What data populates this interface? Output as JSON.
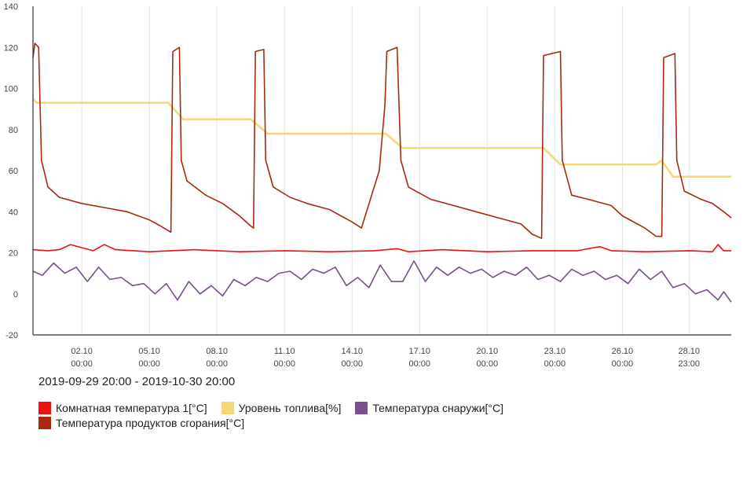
{
  "chart_data": {
    "type": "line",
    "title": "",
    "xlabel": "",
    "ylabel": "",
    "ylim": [
      -20,
      140
    ],
    "yticks": [
      -20,
      0,
      20,
      40,
      60,
      80,
      100,
      120,
      140
    ],
    "x_start": "2019-09-29 20:00",
    "x_end": "2019-10-30 20:00",
    "x_tick_labels": [
      {
        "day": "02.10",
        "time": "00:00",
        "at": "2019-10-02 00:00"
      },
      {
        "day": "05.10",
        "time": "00:00",
        "at": "2019-10-05 00:00"
      },
      {
        "day": "08.10",
        "time": "00:00",
        "at": "2019-10-08 00:00"
      },
      {
        "day": "11.10",
        "time": "00:00",
        "at": "2019-10-11 00:00"
      },
      {
        "day": "14.10",
        "time": "00:00",
        "at": "2019-10-14 00:00"
      },
      {
        "day": "17.10",
        "time": "00:00",
        "at": "2019-10-17 00:00"
      },
      {
        "day": "20.10",
        "time": "00:00",
        "at": "2019-10-20 00:00"
      },
      {
        "day": "23.10",
        "time": "00:00",
        "at": "2019-10-23 00:00"
      },
      {
        "day": "26.10",
        "time": "00:00",
        "at": "2019-10-26 00:00"
      },
      {
        "day": "28.10",
        "time": "23:00",
        "at": "2019-10-28 23:00"
      }
    ],
    "grid": "vertical",
    "legend_position": "bottom",
    "series": [
      {
        "name": "Комнатная температура 1[°C]",
        "color": "#ee1111",
        "points": [
          [
            "2019-09-29 20:00",
            21.5
          ],
          [
            "2019-09-30 12:00",
            21
          ],
          [
            "2019-10-01 00:00",
            21.5
          ],
          [
            "2019-10-01 12:00",
            24
          ],
          [
            "2019-10-02 00:00",
            22.5
          ],
          [
            "2019-10-02 12:00",
            21
          ],
          [
            "2019-10-03 00:00",
            24
          ],
          [
            "2019-10-03 12:00",
            21.5
          ],
          [
            "2019-10-05 00:00",
            20.5
          ],
          [
            "2019-10-07 00:00",
            21.5
          ],
          [
            "2019-10-09 00:00",
            20.5
          ],
          [
            "2019-10-11 00:00",
            21
          ],
          [
            "2019-10-13 00:00",
            20.5
          ],
          [
            "2019-10-15 00:00",
            21
          ],
          [
            "2019-10-16 00:00",
            22
          ],
          [
            "2019-10-16 12:00",
            20.5
          ],
          [
            "2019-10-18 00:00",
            21.5
          ],
          [
            "2019-10-20 00:00",
            20.5
          ],
          [
            "2019-10-22 00:00",
            21
          ],
          [
            "2019-10-24 00:00",
            21
          ],
          [
            "2019-10-25 00:00",
            23
          ],
          [
            "2019-10-25 12:00",
            21
          ],
          [
            "2019-10-27 00:00",
            20.5
          ],
          [
            "2019-10-29 00:00",
            21
          ],
          [
            "2019-10-30 00:00",
            20.5
          ],
          [
            "2019-10-30 06:00",
            24
          ],
          [
            "2019-10-30 12:00",
            21
          ],
          [
            "2019-10-30 20:00",
            21
          ]
        ]
      },
      {
        "name": "Уровень топлива[%]",
        "color": "#f7d67a",
        "points": [
          [
            "2019-09-29 20:00",
            95
          ],
          [
            "2019-09-30 00:00",
            93
          ],
          [
            "2019-10-05 20:00",
            93
          ],
          [
            "2019-10-06 12:00",
            85
          ],
          [
            "2019-10-09 12:00",
            85
          ],
          [
            "2019-10-10 06:00",
            78
          ],
          [
            "2019-10-15 12:00",
            78
          ],
          [
            "2019-10-16 06:00",
            71
          ],
          [
            "2019-10-22 12:00",
            71
          ],
          [
            "2019-10-23 06:00",
            63
          ],
          [
            "2019-10-27 12:00",
            63
          ],
          [
            "2019-10-27 18:00",
            65
          ],
          [
            "2019-10-28 06:00",
            57
          ],
          [
            "2019-10-30 20:00",
            57
          ]
        ]
      },
      {
        "name": "Температура снаружи[°C]",
        "color": "#7b4f8a",
        "points": [
          [
            "2019-09-29 20:00",
            11
          ],
          [
            "2019-09-30 06:00",
            9
          ],
          [
            "2019-09-30 18:00",
            15
          ],
          [
            "2019-10-01 06:00",
            10
          ],
          [
            "2019-10-01 18:00",
            13
          ],
          [
            "2019-10-02 06:00",
            6
          ],
          [
            "2019-10-02 18:00",
            13
          ],
          [
            "2019-10-03 06:00",
            7
          ],
          [
            "2019-10-03 18:00",
            8
          ],
          [
            "2019-10-04 06:00",
            4
          ],
          [
            "2019-10-04 18:00",
            5
          ],
          [
            "2019-10-05 06:00",
            0
          ],
          [
            "2019-10-05 18:00",
            5
          ],
          [
            "2019-10-06 06:00",
            -3
          ],
          [
            "2019-10-06 18:00",
            6
          ],
          [
            "2019-10-07 06:00",
            0
          ],
          [
            "2019-10-07 18:00",
            4
          ],
          [
            "2019-10-08 06:00",
            -1
          ],
          [
            "2019-10-08 18:00",
            7
          ],
          [
            "2019-10-09 06:00",
            4
          ],
          [
            "2019-10-09 18:00",
            8
          ],
          [
            "2019-10-10 06:00",
            6
          ],
          [
            "2019-10-10 18:00",
            10
          ],
          [
            "2019-10-11 06:00",
            11
          ],
          [
            "2019-10-11 18:00",
            7
          ],
          [
            "2019-10-12 06:00",
            12
          ],
          [
            "2019-10-12 18:00",
            10
          ],
          [
            "2019-10-13 06:00",
            13
          ],
          [
            "2019-10-13 18:00",
            4
          ],
          [
            "2019-10-14 06:00",
            8
          ],
          [
            "2019-10-14 18:00",
            3
          ],
          [
            "2019-10-15 06:00",
            14
          ],
          [
            "2019-10-15 18:00",
            6
          ],
          [
            "2019-10-16 06:00",
            6
          ],
          [
            "2019-10-16 18:00",
            16
          ],
          [
            "2019-10-17 06:00",
            6
          ],
          [
            "2019-10-17 18:00",
            13
          ],
          [
            "2019-10-18 06:00",
            9
          ],
          [
            "2019-10-18 18:00",
            13
          ],
          [
            "2019-10-19 06:00",
            10
          ],
          [
            "2019-10-19 18:00",
            12
          ],
          [
            "2019-10-20 06:00",
            8
          ],
          [
            "2019-10-20 18:00",
            11
          ],
          [
            "2019-10-21 06:00",
            9
          ],
          [
            "2019-10-21 18:00",
            13
          ],
          [
            "2019-10-22 06:00",
            7
          ],
          [
            "2019-10-22 18:00",
            9
          ],
          [
            "2019-10-23 06:00",
            6
          ],
          [
            "2019-10-23 18:00",
            12
          ],
          [
            "2019-10-24 06:00",
            9
          ],
          [
            "2019-10-24 18:00",
            11
          ],
          [
            "2019-10-25 06:00",
            7
          ],
          [
            "2019-10-25 18:00",
            9
          ],
          [
            "2019-10-26 06:00",
            5
          ],
          [
            "2019-10-26 18:00",
            12
          ],
          [
            "2019-10-27 06:00",
            7
          ],
          [
            "2019-10-27 18:00",
            11
          ],
          [
            "2019-10-28 06:00",
            3
          ],
          [
            "2019-10-28 18:00",
            5
          ],
          [
            "2019-10-29 06:00",
            0
          ],
          [
            "2019-10-29 18:00",
            2
          ],
          [
            "2019-10-30 06:00",
            -3
          ],
          [
            "2019-10-30 12:00",
            1
          ],
          [
            "2019-10-30 20:00",
            -4
          ]
        ]
      },
      {
        "name": "Температура продуктов сгорания[°C]",
        "color": "#a62a12",
        "points": [
          [
            "2019-09-29 20:00",
            115
          ],
          [
            "2019-09-29 22:00",
            122
          ],
          [
            "2019-09-30 02:00",
            120
          ],
          [
            "2019-09-30 05:00",
            65
          ],
          [
            "2019-09-30 12:00",
            52
          ],
          [
            "2019-10-01 00:00",
            47
          ],
          [
            "2019-10-02 00:00",
            44
          ],
          [
            "2019-10-03 00:00",
            42
          ],
          [
            "2019-10-04 00:00",
            40
          ],
          [
            "2019-10-05 00:00",
            36
          ],
          [
            "2019-10-05 12:00",
            33
          ],
          [
            "2019-10-05 23:00",
            30
          ],
          [
            "2019-10-06 01:00",
            118
          ],
          [
            "2019-10-06 08:00",
            120
          ],
          [
            "2019-10-06 10:00",
            65
          ],
          [
            "2019-10-06 16:00",
            55
          ],
          [
            "2019-10-07 12:00",
            48
          ],
          [
            "2019-10-08 06:00",
            44
          ],
          [
            "2019-10-09 00:00",
            38
          ],
          [
            "2019-10-09 12:00",
            33
          ],
          [
            "2019-10-09 15:00",
            32
          ],
          [
            "2019-10-09 17:00",
            118
          ],
          [
            "2019-10-10 02:00",
            119
          ],
          [
            "2019-10-10 04:00",
            65
          ],
          [
            "2019-10-10 12:00",
            52
          ],
          [
            "2019-10-11 06:00",
            47
          ],
          [
            "2019-10-12 00:00",
            44
          ],
          [
            "2019-10-13 00:00",
            41
          ],
          [
            "2019-10-13 12:00",
            38
          ],
          [
            "2019-10-14 00:00",
            35
          ],
          [
            "2019-10-14 10:00",
            32
          ],
          [
            "2019-10-15 05:00",
            60
          ],
          [
            "2019-10-15 11:00",
            92
          ],
          [
            "2019-10-15 13:00",
            118
          ],
          [
            "2019-10-16 00:00",
            120
          ],
          [
            "2019-10-16 04:00",
            65
          ],
          [
            "2019-10-16 12:00",
            52
          ],
          [
            "2019-10-17 12:00",
            46
          ],
          [
            "2019-10-18 12:00",
            43
          ],
          [
            "2019-10-19 12:00",
            40
          ],
          [
            "2019-10-20 12:00",
            37
          ],
          [
            "2019-10-21 12:00",
            34
          ],
          [
            "2019-10-22 00:00",
            29
          ],
          [
            "2019-10-22 10:00",
            27
          ],
          [
            "2019-10-22 12:00",
            116
          ],
          [
            "2019-10-23 06:00",
            118
          ],
          [
            "2019-10-23 08:00",
            65
          ],
          [
            "2019-10-23 18:00",
            48
          ],
          [
            "2019-10-24 12:00",
            46
          ],
          [
            "2019-10-25 12:00",
            43
          ],
          [
            "2019-10-26 00:00",
            38
          ],
          [
            "2019-10-27 00:00",
            32
          ],
          [
            "2019-10-27 12:00",
            28
          ],
          [
            "2019-10-27 18:00",
            28
          ],
          [
            "2019-10-27 20:00",
            115
          ],
          [
            "2019-10-28 08:00",
            117
          ],
          [
            "2019-10-28 10:00",
            65
          ],
          [
            "2019-10-28 18:00",
            50
          ],
          [
            "2019-10-29 12:00",
            46
          ],
          [
            "2019-10-30 00:00",
            44
          ],
          [
            "2019-10-30 12:00",
            40
          ],
          [
            "2019-10-30 20:00",
            37
          ]
        ]
      }
    ]
  },
  "date_range_label": "2019-09-29 20:00 - 2019-10-30 20:00"
}
